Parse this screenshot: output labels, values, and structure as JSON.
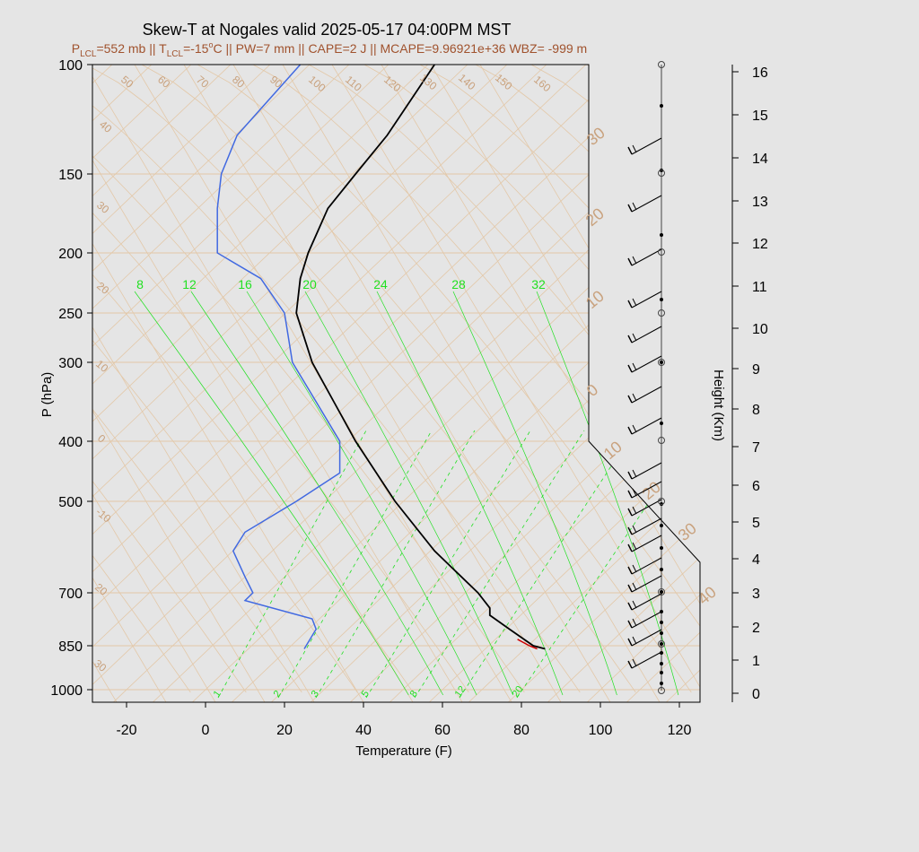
{
  "chart_data": {
    "type": "skew-t",
    "title": "Skew-T at Nogales valid 2025-05-17 04:00PM MST",
    "subtitle": {
      "plcl_prefix": "P",
      "plcl_sub": "LCL",
      "plcl_value": "=552 mb || T",
      "tlcl_sub": "LCL",
      "tlcl_value": "=-15",
      "deg": "o",
      "rest": "C || PW=7 mm || CAPE=2 J || MCAPE=9.96921e+36 WBZ= -999 m"
    },
    "xlabel": "Temperature (F)",
    "ylabel": "P (hPa)",
    "y2label": "Height (Km)",
    "x_ticks": [
      "-20",
      "0",
      "20",
      "40",
      "60",
      "80",
      "100",
      "120"
    ],
    "p_ticks": [
      "100",
      "150",
      "200",
      "250",
      "300",
      "400",
      "500",
      "700",
      "850",
      "1000"
    ],
    "height_ticks": [
      "0",
      "1",
      "2",
      "3",
      "4",
      "5",
      "6",
      "7",
      "8",
      "9",
      "10",
      "11",
      "12",
      "13",
      "14",
      "15",
      "16"
    ],
    "theta_labels": [
      "50",
      "60",
      "70",
      "80",
      "90",
      "100",
      "110",
      "120",
      "130",
      "140",
      "150",
      "160"
    ],
    "skewed_isotherm_labels": [
      "40",
      "30",
      "20",
      "10",
      "0",
      "-10",
      "20",
      "30"
    ],
    "isotherm_labels_right": [
      "30",
      "20",
      "10",
      "0",
      "10",
      "20",
      "30",
      "40"
    ],
    "theta_e_labels": [
      "8",
      "12",
      "16",
      "20",
      "24",
      "28",
      "32"
    ],
    "mixing_ratio_labels": [
      "1",
      "2",
      "3",
      "5",
      "8",
      "12",
      "20"
    ],
    "temperature_F": {
      "pressure_hPa": [
        860,
        850,
        800,
        760,
        740,
        700,
        600,
        500,
        400,
        300,
        250,
        220,
        200,
        170,
        150,
        130,
        100
      ],
      "values": [
        86,
        83,
        77,
        72,
        72,
        69,
        58,
        48,
        38,
        27,
        23,
        24,
        26,
        31,
        38,
        46,
        58
      ]
    },
    "dewpoint_F": {
      "pressure_hPa": [
        860,
        800,
        770,
        720,
        700,
        660,
        600,
        560,
        500,
        450,
        400,
        330,
        300,
        250,
        220,
        200,
        170,
        150,
        130,
        100
      ],
      "values": [
        25,
        28,
        27,
        10,
        12,
        10,
        7,
        10,
        23,
        34,
        34,
        26,
        22,
        20,
        14,
        3,
        3,
        4,
        8,
        24
      ]
    },
    "parcel_segment": {
      "pressure_hPa": [
        830,
        850,
        860
      ],
      "values": [
        79,
        82,
        84
      ]
    },
    "colors": {
      "temperature": "#000000",
      "dewpoint": "#4169e1",
      "parcel": "#cc0000",
      "isopleths": "#e3c8a8",
      "moist": "#22e022"
    }
  }
}
